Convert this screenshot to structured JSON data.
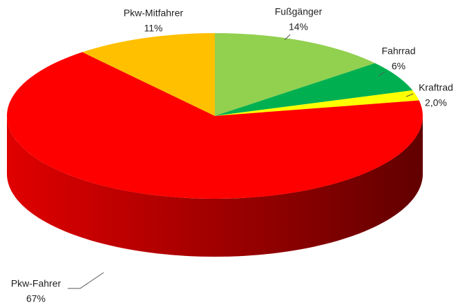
{
  "chart_data": {
    "type": "pie",
    "categories": [
      "Fußgänger",
      "Fahrrad",
      "Kraftrad",
      "Pkw-Fahrer",
      "Pkw-Mitfahrer"
    ],
    "values": [
      14,
      6,
      2.0,
      67,
      11
    ],
    "value_labels": [
      "14%",
      "6%",
      "2,0%",
      "67%",
      "11%"
    ],
    "colors": [
      "#92d050",
      "#00b050",
      "#ffff00",
      "#ff0000",
      "#ffc000"
    ]
  }
}
